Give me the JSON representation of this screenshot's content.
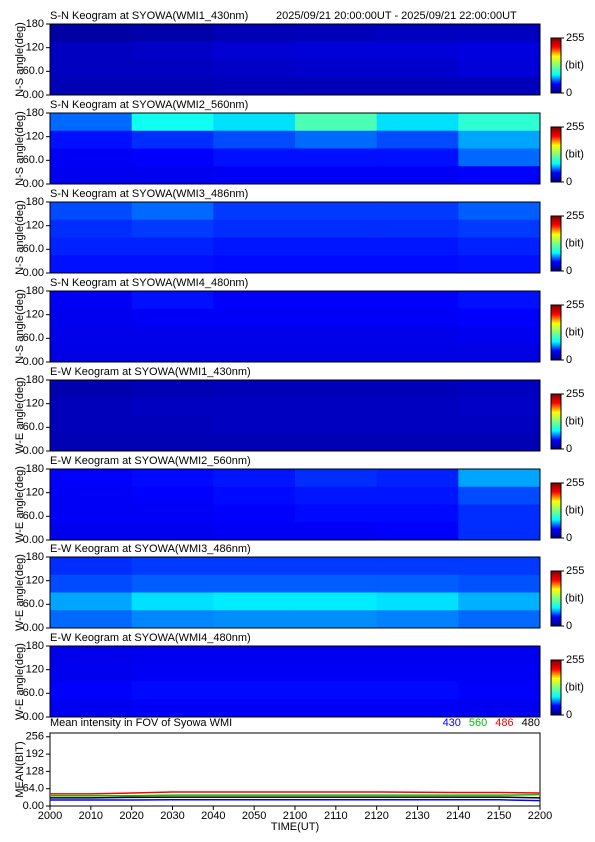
{
  "chart_data": [
    {
      "type": "heatmap",
      "title": "S-N Keogram at SYOWA(WMI1_430nm)",
      "subtitle": "2025/09/21 20:00:00UT - 2025/09/21 22:00:00UT",
      "ylabel": "N-S angle(deg)",
      "ylim": [
        0,
        180
      ],
      "yticks": [
        {
          "value": 0,
          "label": "0.00"
        },
        {
          "value": 60,
          "label": "60.0"
        },
        120,
        180
      ],
      "z": [
        [
          12,
          14,
          18,
          20,
          22,
          22
        ],
        [
          22,
          24,
          28,
          30,
          30,
          32
        ],
        [
          22,
          22,
          24,
          26,
          26,
          30
        ],
        [
          18,
          18,
          20,
          20,
          20,
          20
        ]
      ],
      "clim": [
        0,
        255
      ],
      "cticks": [
        0,
        255
      ],
      "clabel": "(bit)",
      "colormap": [
        "#00007f",
        "#0000ff",
        "#00ffff",
        "#7fff7f",
        "#ffff00",
        "#ff0000",
        "#7f0000"
      ]
    },
    {
      "type": "heatmap",
      "title": "S-N Keogram at SYOWA(WMI2_560nm)",
      "ylabel": "N-S angle(deg)",
      "ylim": [
        0,
        180
      ],
      "yticks": [
        {
          "value": 0,
          "label": "0.00"
        },
        {
          "value": 60,
          "label": "60.0"
        },
        120,
        180
      ],
      "z": [
        [
          60,
          90,
          80,
          110,
          80,
          100
        ],
        [
          45,
          50,
          55,
          60,
          55,
          70
        ],
        [
          40,
          42,
          45,
          45,
          45,
          60
        ],
        [
          38,
          38,
          40,
          40,
          40,
          42
        ]
      ],
      "clim": [
        0,
        255
      ],
      "cticks": [
        0,
        255
      ],
      "clabel": "(bit)",
      "colormap": [
        "#00007f",
        "#0000ff",
        "#00ffff",
        "#7fff7f",
        "#ffff00",
        "#ff0000",
        "#7f0000"
      ]
    },
    {
      "type": "heatmap",
      "title": "S-N Keogram at SYOWA(WMI3_486nm)",
      "ylabel": "N-S angle(deg)",
      "ylim": [
        0,
        180
      ],
      "yticks": [
        {
          "value": 0,
          "label": "0.00"
        },
        {
          "value": 60,
          "label": "60.0"
        },
        120,
        180
      ],
      "z": [
        [
          55,
          60,
          52,
          52,
          52,
          58
        ],
        [
          50,
          52,
          50,
          50,
          50,
          52
        ],
        [
          48,
          48,
          46,
          46,
          46,
          48
        ],
        [
          45,
          45,
          44,
          44,
          44,
          45
        ]
      ],
      "clim": [
        0,
        255
      ],
      "cticks": [
        0,
        255
      ],
      "clabel": "(bit)",
      "colormap": [
        "#00007f",
        "#0000ff",
        "#00ffff",
        "#7fff7f",
        "#ffff00",
        "#ff0000",
        "#7f0000"
      ]
    },
    {
      "type": "heatmap",
      "title": "S-N Keogram at SYOWA(WMI4_480nm)",
      "ylabel": "N-S angle(deg)",
      "ylim": [
        0,
        180
      ],
      "yticks": [
        {
          "value": 0,
          "label": "0.00"
        },
        {
          "value": 60,
          "label": "60.0"
        },
        120,
        180
      ],
      "z": [
        [
          40,
          45,
          42,
          42,
          42,
          45
        ],
        [
          38,
          40,
          40,
          40,
          40,
          42
        ],
        [
          36,
          36,
          36,
          36,
          36,
          38
        ],
        [
          34,
          34,
          34,
          34,
          34,
          34
        ]
      ],
      "clim": [
        0,
        255
      ],
      "cticks": [
        0,
        255
      ],
      "clabel": "(bit)",
      "colormap": [
        "#00007f",
        "#0000ff",
        "#00ffff",
        "#7fff7f",
        "#ffff00",
        "#ff0000",
        "#7f0000"
      ]
    },
    {
      "type": "heatmap",
      "title": "E-W Keogram at SYOWA(WMI1_430nm)",
      "ylabel": "W-E angle(deg)",
      "ylim": [
        0,
        180
      ],
      "yticks": [
        {
          "value": 0,
          "label": "0.00"
        },
        {
          "value": 60,
          "label": "60.0"
        },
        120,
        180
      ],
      "z": [
        [
          16,
          18,
          20,
          20,
          20,
          22
        ],
        [
          20,
          22,
          22,
          22,
          22,
          24
        ],
        [
          20,
          20,
          22,
          22,
          22,
          22
        ],
        [
          18,
          18,
          18,
          18,
          18,
          18
        ]
      ],
      "clim": [
        0,
        255
      ],
      "cticks": [
        0,
        255
      ],
      "clabel": "(bit)",
      "colormap": [
        "#00007f",
        "#0000ff",
        "#00ffff",
        "#7fff7f",
        "#ffff00",
        "#ff0000",
        "#7f0000"
      ]
    },
    {
      "type": "heatmap",
      "title": "E-W Keogram at SYOWA(WMI2_560nm)",
      "ylabel": "W-E angle(deg)",
      "ylim": [
        0,
        180
      ],
      "yticks": [
        {
          "value": 0,
          "label": "0.00"
        },
        {
          "value": 60,
          "label": "60.0"
        },
        120,
        180
      ],
      "z": [
        [
          42,
          44,
          46,
          50,
          48,
          70
        ],
        [
          40,
          42,
          44,
          46,
          46,
          55
        ],
        [
          40,
          40,
          42,
          44,
          44,
          50
        ],
        [
          38,
          38,
          40,
          40,
          42,
          50
        ]
      ],
      "clim": [
        0,
        255
      ],
      "cticks": [
        0,
        255
      ],
      "clabel": "(bit)",
      "colormap": [
        "#00007f",
        "#0000ff",
        "#00ffff",
        "#7fff7f",
        "#ffff00",
        "#ff0000",
        "#7f0000"
      ]
    },
    {
      "type": "heatmap",
      "title": "E-W Keogram at SYOWA(WMI3_486nm)",
      "ylabel": "W-E angle(deg)",
      "ylim": [
        0,
        180
      ],
      "yticks": [
        {
          "value": 0,
          "label": "0.00"
        },
        {
          "value": 60,
          "label": "60.0"
        },
        120,
        180
      ],
      "z": [
        [
          50,
          52,
          52,
          52,
          52,
          52
        ],
        [
          55,
          58,
          58,
          58,
          58,
          56
        ],
        [
          70,
          80,
          82,
          82,
          80,
          72
        ],
        [
          60,
          65,
          66,
          66,
          64,
          60
        ]
      ],
      "clim": [
        0,
        255
      ],
      "cticks": [
        0,
        255
      ],
      "clabel": "(bit)",
      "colormap": [
        "#00007f",
        "#0000ff",
        "#00ffff",
        "#7fff7f",
        "#ffff00",
        "#ff0000",
        "#7f0000"
      ]
    },
    {
      "type": "heatmap",
      "title": "E-W Keogram at SYOWA(WMI4_480nm)",
      "ylabel": "W-E angle(deg)",
      "ylim": [
        0,
        180
      ],
      "yticks": [
        {
          "value": 0,
          "label": "0.00"
        },
        {
          "value": 60,
          "label": "60.0"
        },
        120,
        180
      ],
      "z": [
        [
          36,
          38,
          38,
          38,
          38,
          38
        ],
        [
          38,
          40,
          40,
          40,
          40,
          40
        ],
        [
          42,
          44,
          44,
          44,
          44,
          42
        ],
        [
          38,
          40,
          40,
          40,
          40,
          38
        ]
      ],
      "clim": [
        0,
        255
      ],
      "cticks": [
        0,
        255
      ],
      "clabel": "(bit)",
      "colormap": [
        "#00007f",
        "#0000ff",
        "#00ffff",
        "#7fff7f",
        "#ffff00",
        "#ff0000",
        "#7f0000"
      ]
    },
    {
      "type": "line",
      "title": "Mean intensity in FOV of Syowa WMI",
      "ylabel": "MEAN(BIT)",
      "xlabel": "TIME(UT)",
      "x": [
        0,
        10,
        20,
        30,
        40,
        50,
        60,
        70,
        80,
        90,
        100,
        110,
        120
      ],
      "xlim": [
        0,
        120
      ],
      "xticks": [
        {
          "value": 0,
          "label": "2000"
        },
        {
          "value": 10,
          "label": "2010"
        },
        {
          "value": 20,
          "label": "2020"
        },
        {
          "value": 30,
          "label": "2030"
        },
        {
          "value": 40,
          "label": "2040"
        },
        {
          "value": 50,
          "label": "2050"
        },
        {
          "value": 60,
          "label": "2100"
        },
        {
          "value": 70,
          "label": "2110"
        },
        {
          "value": 80,
          "label": "2120"
        },
        {
          "value": 90,
          "label": "2130"
        },
        {
          "value": 100,
          "label": "2140"
        },
        {
          "value": 110,
          "label": "2150"
        },
        {
          "value": 120,
          "label": "2200"
        }
      ],
      "ylim": [
        0,
        270
      ],
      "yticks": [
        {
          "value": 0,
          "label": "0.00"
        },
        {
          "value": 64,
          "label": "64.0"
        },
        128,
        192,
        256
      ],
      "series": [
        {
          "name": "430",
          "color": "#0000ff",
          "values": [
            22,
            22,
            22,
            23,
            23,
            23,
            23,
            23,
            23,
            23,
            23,
            23,
            20
          ]
        },
        {
          "name": "560",
          "color": "#00c000",
          "values": [
            38,
            38,
            38,
            40,
            40,
            40,
            40,
            40,
            40,
            40,
            40,
            40,
            42
          ]
        },
        {
          "name": "486",
          "color": "#ff0000",
          "values": [
            45,
            45,
            48,
            52,
            52,
            52,
            52,
            52,
            52,
            51,
            50,
            50,
            48
          ]
        },
        {
          "name": "480",
          "color": "#000000",
          "values": [
            30,
            30,
            32,
            33,
            33,
            33,
            33,
            33,
            33,
            33,
            33,
            33,
            30
          ]
        }
      ]
    }
  ]
}
